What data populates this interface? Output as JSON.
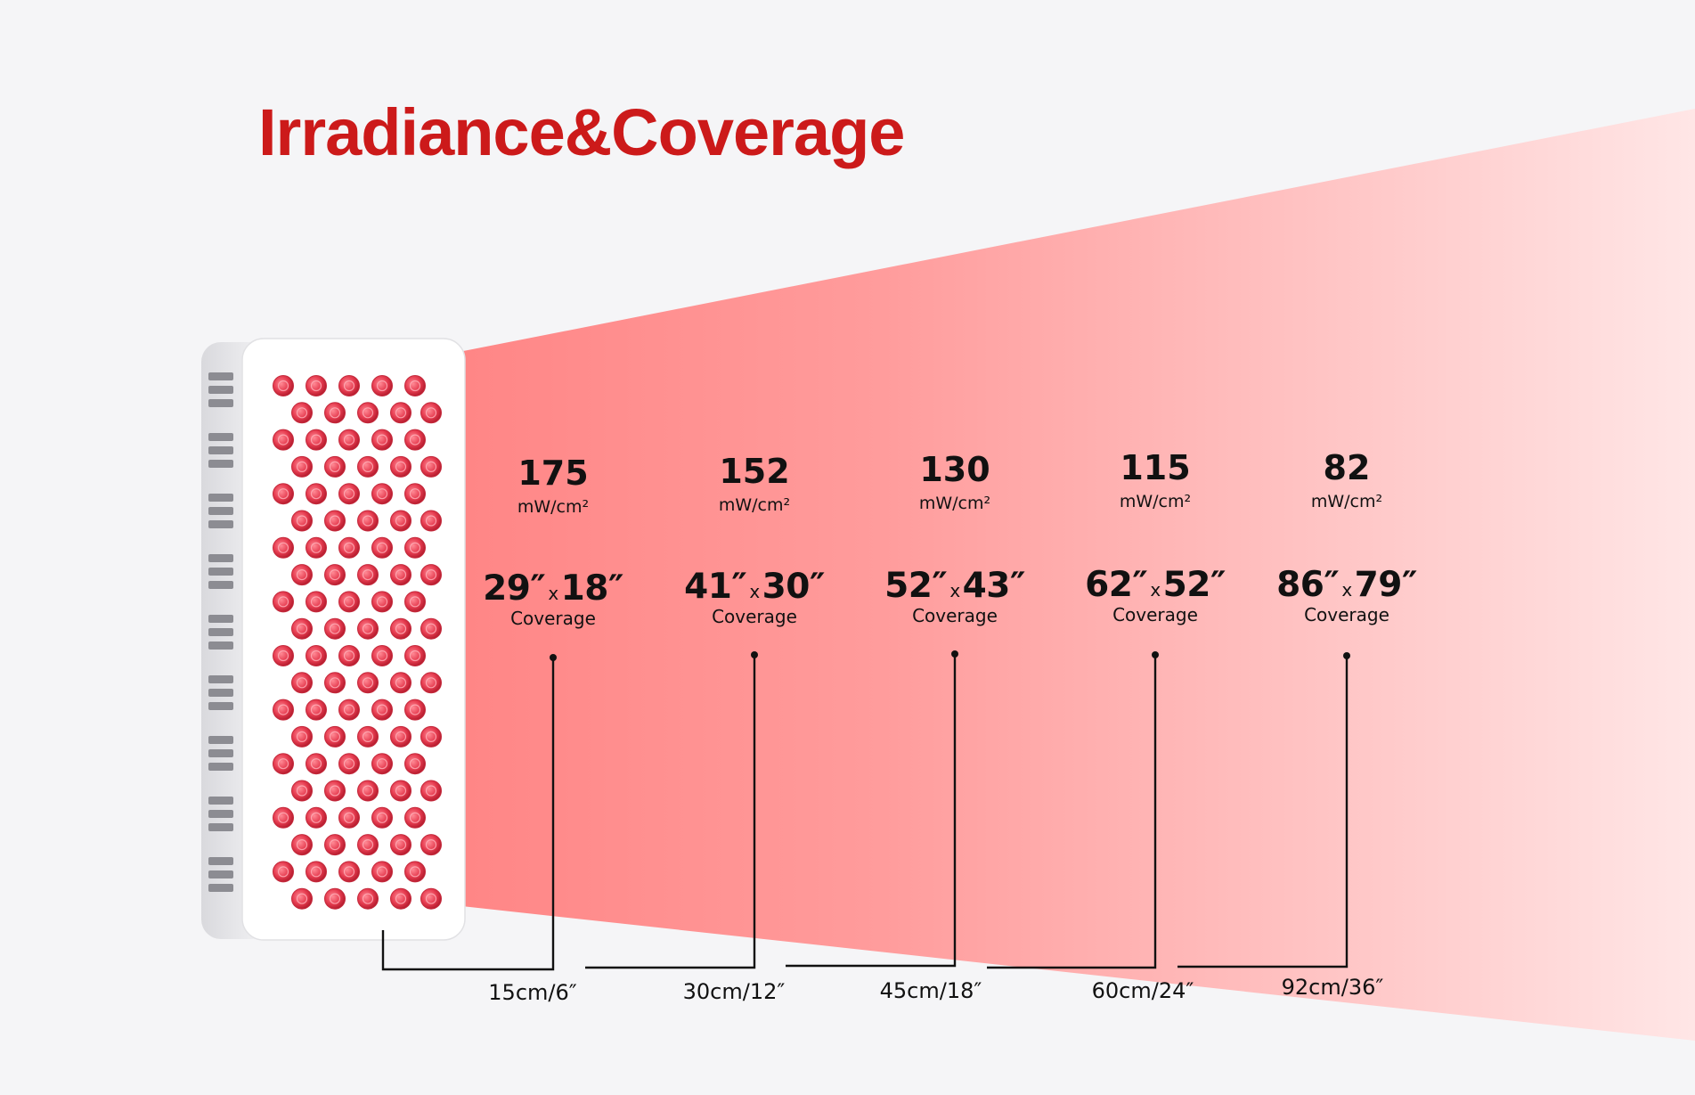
{
  "title": "Irradiance&Coverage",
  "colors": {
    "title": "#cc1a1a",
    "beam_start": "#ff8585",
    "beam_end": "#ffe6e6",
    "led": "#e63c50",
    "panel": "#ffffff",
    "line": "#111111"
  },
  "irradiance_unit": "mW/cm²",
  "coverage_word": "Coverage",
  "multiply_sign": "x",
  "points": [
    {
      "irradiance": "175",
      "width": "29″",
      "height": "18″",
      "distance": "15cm/6″"
    },
    {
      "irradiance": "152",
      "width": "41″",
      "height": "30″",
      "distance": "30cm/12″"
    },
    {
      "irradiance": "130",
      "width": "52″",
      "height": "43″",
      "distance": "45cm/18″"
    },
    {
      "irradiance": "115",
      "width": "62″",
      "height": "52″",
      "distance": "60cm/24″"
    },
    {
      "irradiance": "82",
      "width": "86″",
      "height": "79″",
      "distance": "92cm/36″"
    }
  ]
}
